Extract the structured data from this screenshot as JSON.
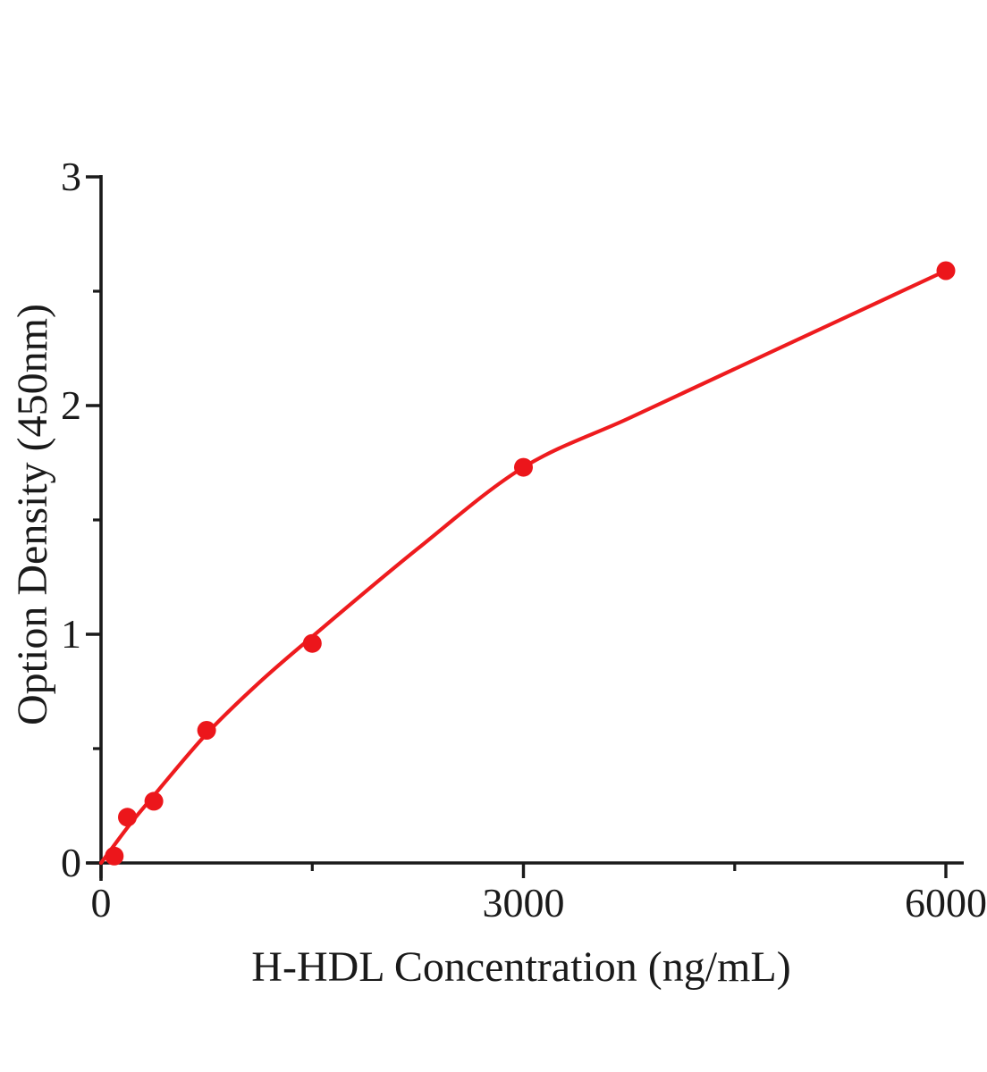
{
  "figure": {
    "background": "#ffffff",
    "description": "ELISA standard curve"
  },
  "chart_data": {
    "type": "scatter",
    "title": "",
    "xlabel": "H-HDL Concentration (ng/mL)",
    "ylabel": "Option Density (450nm)",
    "xlim": [
      0,
      6000
    ],
    "ylim": [
      0,
      3
    ],
    "grid": false,
    "legend": "none",
    "x_ticks": [
      {
        "value": 0,
        "label": "0"
      },
      {
        "value": 3000,
        "label": "3000"
      },
      {
        "value": 6000,
        "label": "6000"
      }
    ],
    "x_minor_ticks": [
      1500,
      4500
    ],
    "y_ticks": [
      {
        "value": 0,
        "label": "0"
      },
      {
        "value": 1,
        "label": "1"
      },
      {
        "value": 2,
        "label": "2"
      },
      {
        "value": 3,
        "label": "3"
      }
    ],
    "y_minor_ticks": [
      0.5,
      1.5,
      2.5
    ],
    "series": [
      {
        "name": "H-HDL standard points",
        "type": "scatter",
        "marker": "circle",
        "color": "#ec161b",
        "points": [
          [
            93.75,
            0.03
          ],
          [
            187.5,
            0.2
          ],
          [
            375,
            0.27
          ],
          [
            750,
            0.58
          ],
          [
            1500,
            0.96
          ],
          [
            3000,
            1.73
          ],
          [
            6000,
            2.59
          ]
        ]
      },
      {
        "name": "fitted curve",
        "type": "line",
        "color": "#ee1b1e",
        "points": [
          [
            0,
            0.0
          ],
          [
            200,
            0.165
          ],
          [
            375,
            0.295
          ],
          [
            750,
            0.565
          ],
          [
            1125,
            0.79
          ],
          [
            1500,
            0.99
          ],
          [
            2250,
            1.375
          ],
          [
            3000,
            1.73
          ],
          [
            3750,
            1.945
          ],
          [
            4500,
            2.16
          ],
          [
            5250,
            2.375
          ],
          [
            6000,
            2.59
          ]
        ]
      }
    ],
    "colors": {
      "curve": "#ee1b1e",
      "marker": "#ec161b",
      "axis": "#1a1a1a",
      "text": "#1a1a1a",
      "background": "#ffffff"
    }
  }
}
